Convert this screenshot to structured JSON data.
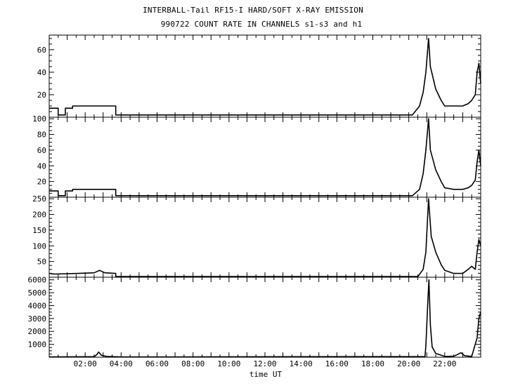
{
  "chart_data": {
    "type": "line",
    "title": "INTERBALL-Tail RF15-I HARD/SOFT X-RAY EMISSION",
    "subtitle": "990722  COUNT RATE IN CHANNELS s1-s3 and h1",
    "xlabel": "time UT",
    "x_unit": "hours UT",
    "xlim": [
      0,
      24
    ],
    "x_ticks": [
      {
        "value": 2,
        "label": "02:00"
      },
      {
        "value": 4,
        "label": "04:00"
      },
      {
        "value": 6,
        "label": "06:00"
      },
      {
        "value": 8,
        "label": "08:00"
      },
      {
        "value": 10,
        "label": "10:00"
      },
      {
        "value": 12,
        "label": "12:00"
      },
      {
        "value": 14,
        "label": "14:00"
      },
      {
        "value": 16,
        "label": "16:00"
      },
      {
        "value": 18,
        "label": "18:00"
      },
      {
        "value": 20,
        "label": "20:00"
      },
      {
        "value": 22,
        "label": "22:00"
      }
    ],
    "panels": [
      {
        "ylim": [
          0,
          73
        ],
        "y_ticks": [
          20,
          40,
          60
        ],
        "series": [
          {
            "x": [
              0.0,
              0.5,
              0.5,
              0.9,
              0.9,
              1.3,
              1.3,
              3.7,
              3.7,
              9.6,
              11.0,
              14.0,
              14.5,
              19.6,
              20.2,
              20.6,
              20.8,
              20.95,
              21.1,
              21.2,
              21.5,
              21.8,
              22.0,
              22.5,
              23.0,
              23.3,
              23.5,
              23.7,
              23.8,
              23.9,
              24.0
            ],
            "y": [
              8,
              8,
              2,
              2,
              8,
              8,
              10,
              10,
              2,
              2,
              2,
              2,
              2,
              2,
              2,
              10,
              22,
              40,
              70,
              45,
              25,
              15,
              10,
              10,
              10,
              12,
              15,
              20,
              40,
              48,
              30
            ]
          }
        ]
      },
      {
        "ylim": [
          0,
          102
        ],
        "y_ticks": [
          20,
          40,
          60,
          80,
          100
        ],
        "series": [
          {
            "x": [
              0.0,
              0.5,
              0.5,
              0.9,
              0.9,
              1.3,
              1.3,
              3.7,
              3.7,
              9.6,
              11.0,
              14.0,
              14.5,
              19.6,
              20.2,
              20.6,
              20.8,
              20.95,
              21.1,
              21.2,
              21.5,
              21.8,
              22.0,
              22.5,
              23.0,
              23.3,
              23.5,
              23.7,
              23.8,
              23.9,
              24.0
            ],
            "y": [
              8,
              8,
              2,
              2,
              8,
              8,
              10,
              10,
              2,
              2,
              2,
              2,
              2,
              2,
              2,
              10,
              30,
              60,
              100,
              60,
              35,
              20,
              12,
              10,
              10,
              12,
              15,
              22,
              45,
              60,
              40
            ]
          }
        ]
      },
      {
        "ylim": [
          0,
          255
        ],
        "y_ticks": [
          50,
          100,
          150,
          200,
          250
        ],
        "series": [
          {
            "x": [
              0.0,
              0.3,
              1.6,
              2.5,
              2.8,
              3.1,
              3.7,
              3.7,
              20.5,
              20.8,
              20.95,
              21.1,
              21.25,
              21.5,
              21.8,
              22.0,
              22.5,
              23.0,
              23.3,
              23.5,
              23.7,
              23.8,
              23.9,
              24.0
            ],
            "y": [
              12,
              10,
              12,
              14,
              22,
              14,
              12,
              2,
              2,
              25,
              80,
              250,
              130,
              80,
              40,
              22,
              12,
              12,
              25,
              35,
              25,
              80,
              120,
              100
            ]
          }
        ]
      },
      {
        "ylim": [
          0,
          6200
        ],
        "y_ticks": [
          1000,
          2000,
          3000,
          4000,
          5000,
          6000
        ],
        "series": [
          {
            "x": [
              0.0,
              2.5,
              2.65,
              2.75,
              2.9,
              3.2,
              4.0,
              20.9,
              20.95,
              21.05,
              21.12,
              21.2,
              21.3,
              21.5,
              22.0,
              22.5,
              22.7,
              22.9,
              23.1,
              23.5,
              23.8,
              23.9,
              24.0
            ],
            "y": [
              20,
              40,
              200,
              400,
              150,
              60,
              20,
              50,
              900,
              4000,
              6000,
              2500,
              800,
              300,
              60,
              80,
              200,
              350,
              120,
              60,
              1500,
              3000,
              3500
            ]
          }
        ]
      }
    ]
  }
}
